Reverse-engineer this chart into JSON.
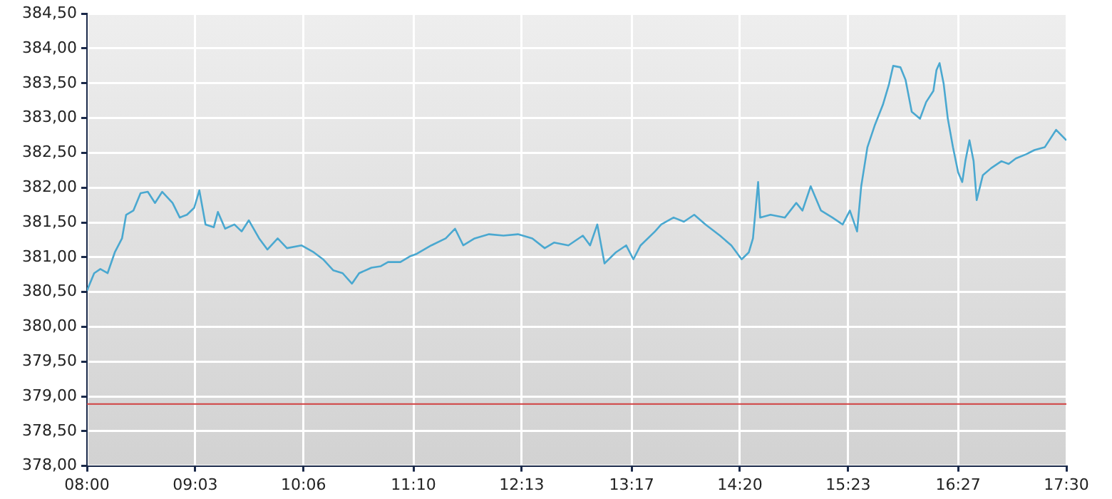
{
  "chart_data": {
    "type": "line",
    "xlim": [
      8,
      17.5
    ],
    "xticks": [
      {
        "value": 8,
        "label": "08:00"
      },
      {
        "value": 9.05,
        "label": "09:03"
      },
      {
        "value": 10.1,
        "label": "10:06"
      },
      {
        "value": 11.1667,
        "label": "11:10"
      },
      {
        "value": 12.2167,
        "label": "12:13"
      },
      {
        "value": 13.2833,
        "label": "13:17"
      },
      {
        "value": 14.3333,
        "label": "14:20"
      },
      {
        "value": 15.3833,
        "label": "15:23"
      },
      {
        "value": 16.45,
        "label": "16:27"
      },
      {
        "value": 17.5,
        "label": "17:30"
      }
    ],
    "ylim": [
      378,
      384.5
    ],
    "yticks": [
      {
        "value": 378,
        "label": "378,00"
      },
      {
        "value": 378.5,
        "label": "378,50"
      },
      {
        "value": 379,
        "label": "379,00"
      },
      {
        "value": 379.5,
        "label": "379,50"
      },
      {
        "value": 380,
        "label": "380,00"
      },
      {
        "value": 380.5,
        "label": "380,50"
      },
      {
        "value": 381,
        "label": "381,00"
      },
      {
        "value": 381.5,
        "label": "381,50"
      },
      {
        "value": 382,
        "label": "382,00"
      },
      {
        "value": 382.5,
        "label": "382,50"
      },
      {
        "value": 383,
        "label": "383,00"
      },
      {
        "value": 383.5,
        "label": "383,50"
      },
      {
        "value": 384,
        "label": "384,00"
      },
      {
        "value": 384.5,
        "label": "384,50"
      }
    ],
    "grid": true,
    "legend": false,
    "marker": "none",
    "line_style": "solid",
    "ref_lines": [
      {
        "axis": "y",
        "value": 378.89,
        "color": "#d04040"
      }
    ],
    "series": [
      {
        "color": "#4aa8d0",
        "x": [
          8.0,
          8.07,
          8.13,
          8.2,
          8.27,
          8.34,
          8.38,
          8.45,
          8.52,
          8.59,
          8.66,
          8.73,
          8.83,
          8.9,
          8.97,
          9.04,
          9.09,
          9.15,
          9.23,
          9.27,
          9.34,
          9.43,
          9.5,
          9.57,
          9.67,
          9.75,
          9.85,
          9.94,
          10.08,
          10.2,
          10.29,
          10.39,
          10.48,
          10.57,
          10.64,
          10.76,
          10.85,
          10.92,
          11.04,
          11.13,
          11.2,
          11.34,
          11.48,
          11.57,
          11.65,
          11.76,
          11.9,
          12.04,
          12.18,
          12.32,
          12.44,
          12.53,
          12.67,
          12.81,
          12.88,
          12.95,
          13.02,
          13.13,
          13.23,
          13.3,
          13.37,
          13.51,
          13.57,
          13.69,
          13.79,
          13.89,
          14.0,
          14.14,
          14.25,
          14.35,
          14.42,
          14.46,
          14.51,
          14.53,
          14.63,
          14.77,
          14.88,
          14.94,
          15.02,
          15.12,
          15.23,
          15.33,
          15.4,
          15.47,
          15.51,
          15.57,
          15.64,
          15.72,
          15.78,
          15.82,
          15.89,
          15.94,
          16.0,
          16.08,
          16.14,
          16.21,
          16.24,
          16.27,
          16.31,
          16.35,
          16.4,
          16.45,
          16.49,
          16.52,
          16.56,
          16.6,
          16.63,
          16.69,
          16.77,
          16.87,
          16.94,
          17.01,
          17.11,
          17.19,
          17.29,
          17.4,
          17.5
        ],
        "values": [
          380.52,
          380.77,
          380.83,
          380.77,
          381.07,
          381.27,
          381.61,
          381.67,
          381.92,
          381.94,
          381.78,
          381.94,
          381.78,
          381.57,
          381.61,
          381.71,
          381.96,
          381.47,
          381.43,
          381.65,
          381.41,
          381.47,
          381.37,
          381.53,
          381.27,
          381.11,
          381.27,
          381.13,
          381.17,
          381.07,
          380.97,
          380.81,
          380.77,
          380.62,
          380.77,
          380.85,
          380.87,
          380.93,
          380.93,
          381.01,
          381.05,
          381.17,
          381.27,
          381.41,
          381.17,
          381.27,
          381.33,
          381.31,
          381.33,
          381.27,
          381.13,
          381.21,
          381.17,
          381.31,
          381.17,
          381.47,
          380.91,
          381.07,
          381.17,
          380.97,
          381.17,
          381.37,
          381.47,
          381.57,
          381.51,
          381.61,
          381.47,
          381.31,
          381.17,
          380.97,
          381.07,
          381.27,
          382.08,
          381.57,
          381.61,
          381.57,
          381.78,
          381.67,
          382.02,
          381.67,
          381.57,
          381.47,
          381.67,
          381.37,
          382.02,
          382.58,
          382.89,
          383.19,
          383.49,
          383.75,
          383.73,
          383.55,
          383.09,
          382.99,
          383.23,
          383.39,
          383.69,
          383.79,
          383.49,
          382.99,
          382.58,
          382.22,
          382.08,
          382.38,
          382.68,
          382.38,
          381.82,
          382.18,
          382.28,
          382.38,
          382.34,
          382.42,
          382.48,
          382.54,
          382.58,
          382.83,
          382.68
        ]
      }
    ]
  }
}
